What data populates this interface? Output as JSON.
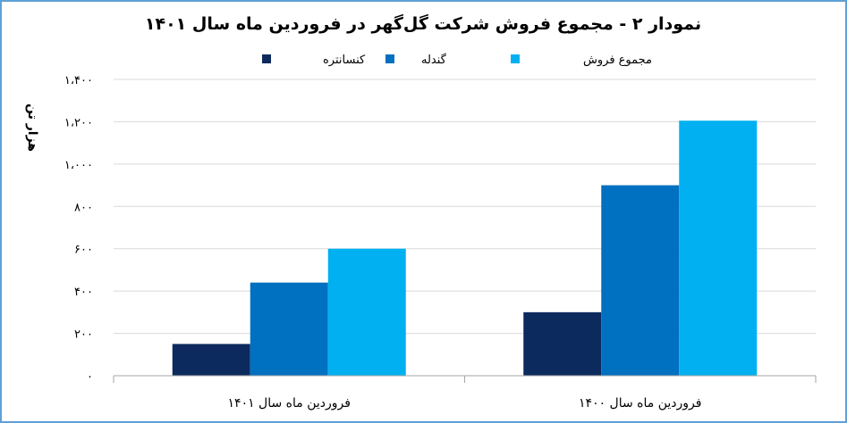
{
  "chart_data": {
    "type": "bar",
    "title": "نمودار ۲ - مجموع فروش شرکت گل‌گهر در فروردین ماه سال ۱۴۰۱",
    "ylabel": "هزار تن",
    "xlabel": "",
    "categories": [
      "فروردین ماه سال ۱۴۰۱",
      "فروردین ماه سال ۱۴۰۰"
    ],
    "series": [
      {
        "name": "کنسانتره",
        "color": "#0c2a5e",
        "values": [
          150,
          300
        ]
      },
      {
        "name": "گندله",
        "color": "#0070c0",
        "values": [
          440,
          900
        ]
      },
      {
        "name": "مجموع فروش",
        "color": "#00b0f0",
        "values": [
          600,
          1205
        ]
      }
    ],
    "ylim": [
      0,
      1400
    ],
    "yticks": [
      0,
      200,
      400,
      600,
      800,
      1000,
      1200,
      1400
    ],
    "ytick_labels": [
      "۰",
      "۲۰۰",
      "۴۰۰",
      "۶۰۰",
      "۸۰۰",
      "۱،۰۰۰",
      "۱،۲۰۰",
      "۱،۴۰۰"
    ],
    "grid": true,
    "legend_position": "top"
  }
}
